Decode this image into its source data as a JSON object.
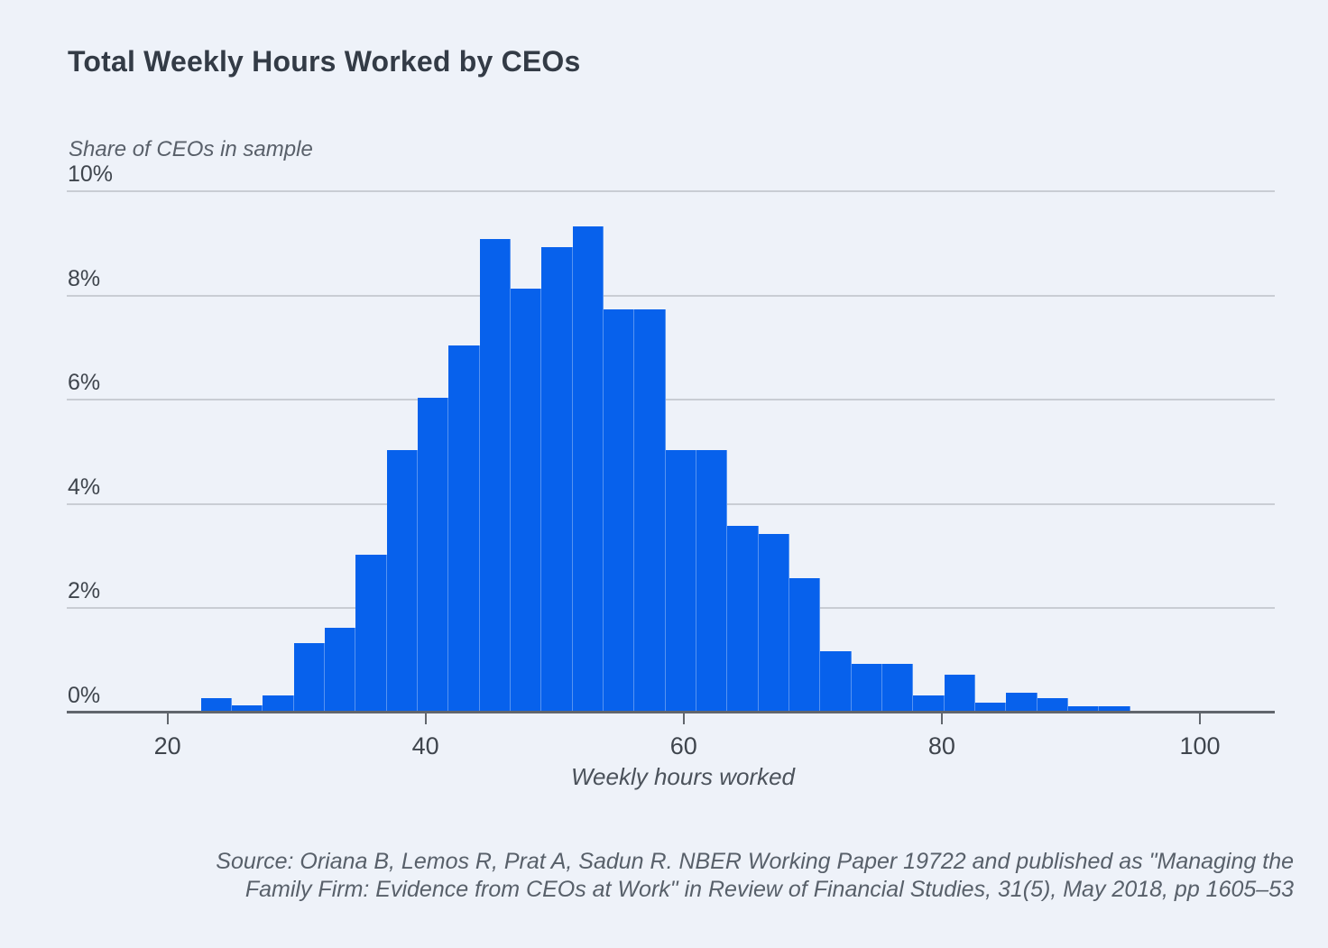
{
  "page": {
    "background_color": "#eef2f9"
  },
  "header": {
    "title": "Total Weekly Hours Worked by CEOs"
  },
  "chart_data": {
    "type": "bar",
    "subtype": "histogram",
    "title": "Total Weekly Hours Worked by CEOs",
    "ylabel": "Share of CEOs in sample",
    "xlabel": "Weekly hours worked",
    "grid": true,
    "legend_position": "none",
    "bar_color": "#0761ec",
    "x_axis": {
      "min": 12.2,
      "max": 105.8,
      "tick_values": [
        20,
        40,
        60,
        80,
        100
      ],
      "tick_labels": [
        "20",
        "40",
        "60",
        "80",
        "100"
      ]
    },
    "y_axis": {
      "min": 0,
      "max": 10,
      "tick_values": [
        0,
        2,
        4,
        6,
        8,
        10
      ],
      "tick_labels": [
        "0%",
        "2%",
        "4%",
        "6%",
        "8%",
        "10%"
      ]
    },
    "bin_width_hours": 2.4,
    "bins": [
      {
        "start": 22.6,
        "share": 0.25
      },
      {
        "start": 25.0,
        "share": 0.1
      },
      {
        "start": 27.4,
        "share": 0.3
      },
      {
        "start": 29.8,
        "share": 1.3
      },
      {
        "start": 32.2,
        "share": 1.6
      },
      {
        "start": 34.6,
        "share": 3.0
      },
      {
        "start": 37.0,
        "share": 5.0
      },
      {
        "start": 39.4,
        "share": 6.0
      },
      {
        "start": 41.8,
        "share": 7.0
      },
      {
        "start": 44.2,
        "share": 9.05
      },
      {
        "start": 46.6,
        "share": 8.1
      },
      {
        "start": 49.0,
        "share": 8.9
      },
      {
        "start": 51.4,
        "share": 9.3
      },
      {
        "start": 53.8,
        "share": 7.7
      },
      {
        "start": 56.2,
        "share": 7.7
      },
      {
        "start": 58.6,
        "share": 5.0
      },
      {
        "start": 61.0,
        "share": 5.0
      },
      {
        "start": 63.4,
        "share": 3.55
      },
      {
        "start": 65.8,
        "share": 3.4
      },
      {
        "start": 68.2,
        "share": 2.55
      },
      {
        "start": 70.6,
        "share": 1.15
      },
      {
        "start": 73.0,
        "share": 0.9
      },
      {
        "start": 75.4,
        "share": 0.9
      },
      {
        "start": 77.8,
        "share": 0.3
      },
      {
        "start": 80.2,
        "share": 0.7
      },
      {
        "start": 82.6,
        "share": 0.15
      },
      {
        "start": 85.0,
        "share": 0.35
      },
      {
        "start": 87.4,
        "share": 0.25
      },
      {
        "start": 89.8,
        "share": 0.08
      },
      {
        "start": 92.2,
        "share": 0.08
      }
    ]
  },
  "source": {
    "line1": "Source: Oriana B, Lemos R, Prat A, Sadun R. NBER Working Paper 19722 and published as \"Managing the",
    "line2": "Family Firm: Evidence from CEOs at Work\" in Review of Financial Studies, 31(5), May 2018, pp 1605–53"
  },
  "colors": {
    "title": "#333b46",
    "subtitle": "#59606a",
    "tick_label": "#3f454d",
    "gridline": "#c9cdd4",
    "axis_line": "#61666d",
    "bar": "#0761ec",
    "source_text": "#58606a",
    "background": "#eef2f9"
  }
}
